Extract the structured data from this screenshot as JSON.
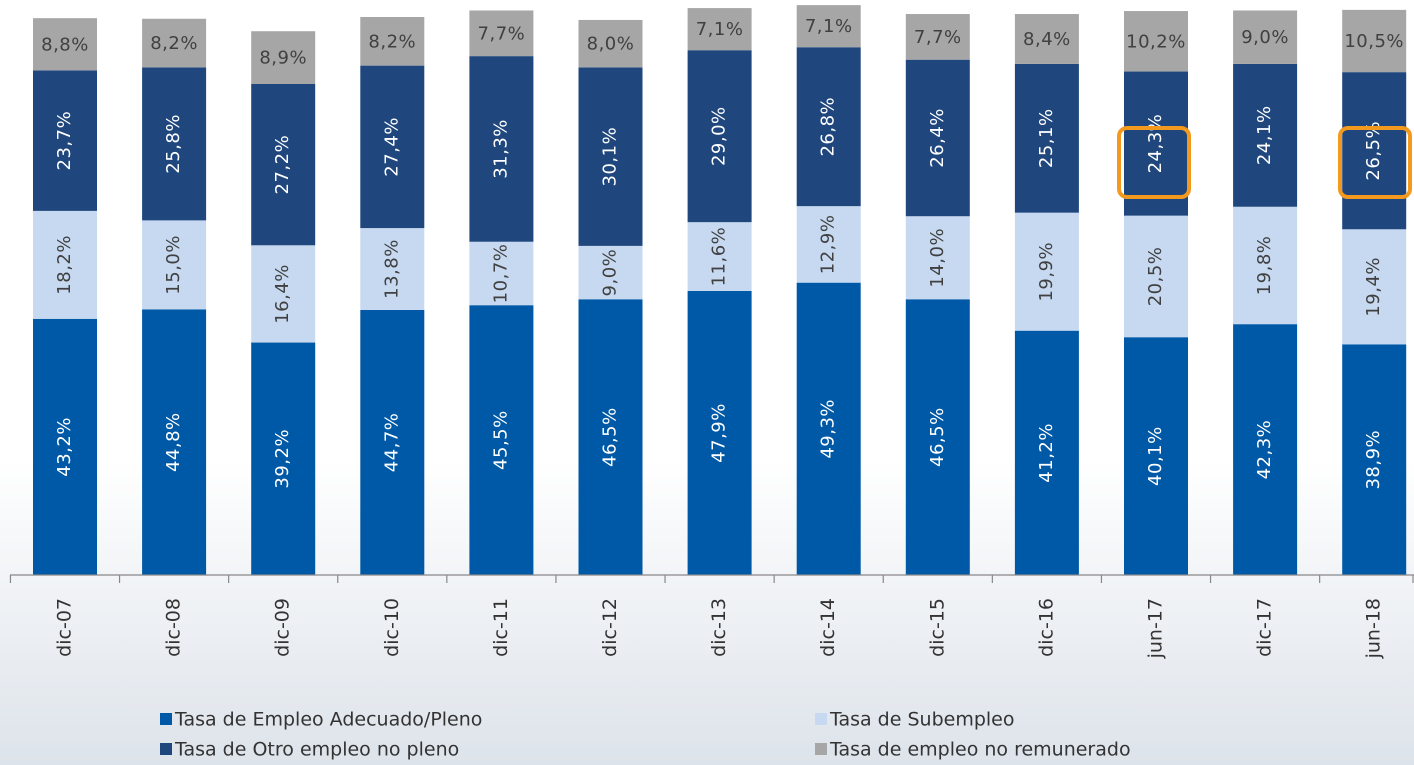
{
  "chart_data": {
    "type": "stacked-bar",
    "categories": [
      "dic-07",
      "dic-08",
      "dic-09",
      "dic-10",
      "dic-11",
      "dic-12",
      "dic-13",
      "dic-14",
      "dic-15",
      "dic-16",
      "jun-17",
      "dic-17",
      "jun-18"
    ],
    "series": [
      {
        "name": "Tasa de Empleo Adecuado/Pleno",
        "color": "#0059a6",
        "values": [
          43.2,
          44.8,
          39.2,
          44.7,
          45.5,
          46.5,
          47.9,
          49.3,
          46.5,
          41.2,
          40.1,
          42.3,
          38.9
        ],
        "value_labels": [
          "43,2%",
          "44,8%",
          "39,2%",
          "44,7%",
          "45,5%",
          "46,5%",
          "47,9%",
          "49,3%",
          "46,5%",
          "41,2%",
          "40,1%",
          "42,3%",
          "38,9%"
        ]
      },
      {
        "name": "Tasa de Subempleo",
        "color": "#c6d9f1",
        "values": [
          18.2,
          15.0,
          16.4,
          13.8,
          10.7,
          9.0,
          11.6,
          12.9,
          14.0,
          19.9,
          20.5,
          19.8,
          19.4
        ],
        "value_labels": [
          "18,2%",
          "15,0%",
          "16,4%",
          "13,8%",
          "10,7%",
          "9,0%",
          "11,6%",
          "12,9%",
          "14,0%",
          "19,9%",
          "20,5%",
          "19,8%",
          "19,4%"
        ]
      },
      {
        "name": "Tasa de Otro empleo no pleno",
        "color": "#1f477e",
        "values": [
          23.7,
          25.8,
          27.2,
          27.4,
          31.3,
          30.1,
          29.0,
          26.8,
          26.4,
          25.1,
          24.3,
          24.1,
          26.5
        ],
        "value_labels": [
          "23,7%",
          "25,8%",
          "27,2%",
          "27,4%",
          "31,3%",
          "30,1%",
          "29,0%",
          "26,8%",
          "26,4%",
          "25,1%",
          "24,3%",
          "24,1%",
          "26,5%"
        ]
      },
      {
        "name": "Tasa de empleo no remunerado",
        "color": "#a6a6a6",
        "values": [
          8.8,
          8.2,
          8.9,
          8.2,
          7.7,
          8.0,
          7.1,
          7.1,
          7.7,
          8.4,
          10.2,
          9.0,
          10.5
        ],
        "value_labels": [
          "8,8%",
          "8,2%",
          "8,9%",
          "8,2%",
          "7,7%",
          "8,0%",
          "7,1%",
          "7,1%",
          "7,7%",
          "8,4%",
          "10,2%",
          "9,0%",
          "10,5%"
        ]
      }
    ]
  }
}
